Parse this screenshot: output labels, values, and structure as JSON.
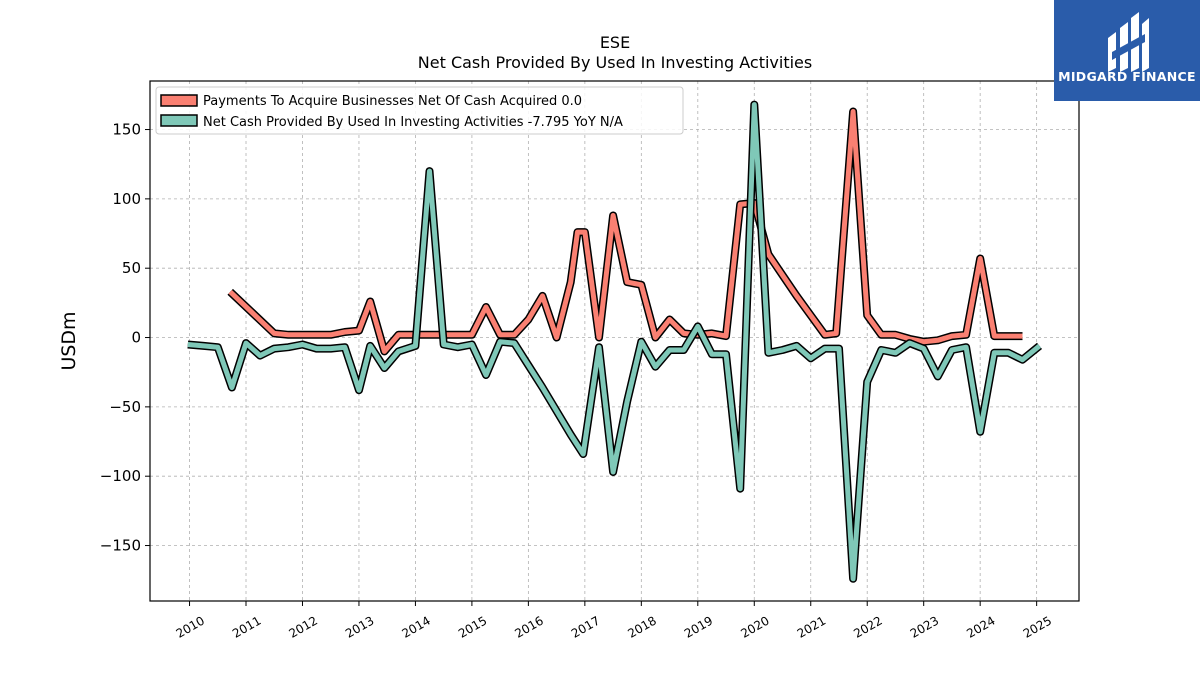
{
  "chart_data": {
    "type": "line",
    "title": "ESE",
    "subtitle": "Net Cash Provided By Used In Investing Activities",
    "ylabel": "USDm",
    "xlabel": "",
    "ylim": [
      -190,
      185
    ],
    "xlim": [
      2009.3,
      2025.75
    ],
    "yticks": [
      -150,
      -100,
      -50,
      0,
      50,
      100,
      150
    ],
    "ytick_labels": [
      "−150",
      "−100",
      "−50",
      "0",
      "50",
      "100",
      "150"
    ],
    "xticks": [
      2010,
      2011,
      2012,
      2013,
      2014,
      2015,
      2016,
      2017,
      2018,
      2019,
      2020,
      2021,
      2022,
      2023,
      2024,
      2025
    ],
    "xtick_labels": [
      "2010",
      "2011",
      "2012",
      "2013",
      "2014",
      "2015",
      "2016",
      "2017",
      "2018",
      "2019",
      "2020",
      "2021",
      "2022",
      "2023",
      "2024",
      "2025"
    ],
    "grid": true,
    "legend_position": "top-left",
    "series": [
      {
        "name": "Payments To Acquire Businesses Net Of Cash Acquired",
        "legend_label": "Payments To Acquire Businesses Net Of Cash Acquired  0.0",
        "color": "#fa8072",
        "x": [
          2010.72,
          2011.5,
          2011.75,
          2012.0,
          2012.25,
          2012.5,
          2012.75,
          2013.0,
          2013.2,
          2013.45,
          2013.7,
          2014.0,
          2014.25,
          2014.5,
          2014.75,
          2015.0,
          2015.25,
          2015.5,
          2015.75,
          2016.0,
          2016.25,
          2016.5,
          2016.75,
          2016.87,
          2017.0,
          2017.25,
          2017.5,
          2017.75,
          2018.0,
          2018.25,
          2018.5,
          2018.75,
          2019.0,
          2019.25,
          2019.5,
          2019.75,
          2020.0,
          2020.25,
          2020.5,
          2020.75,
          2021.0,
          2021.25,
          2021.45,
          2021.75,
          2022.0,
          2022.25,
          2022.5,
          2022.75,
          2023.0,
          2023.25,
          2023.5,
          2023.75,
          2024.0,
          2024.25,
          2024.5,
          2024.75
        ],
        "values": [
          33,
          3,
          2,
          2,
          2,
          2,
          4,
          5,
          26,
          -10,
          2,
          2,
          2,
          2,
          2,
          2,
          22,
          2,
          2,
          13,
          30,
          0,
          40,
          76,
          76,
          0,
          88,
          40,
          38,
          0,
          13,
          3,
          2,
          3,
          1,
          96,
          97,
          60,
          45,
          30,
          16,
          2,
          3,
          163,
          16,
          2,
          2,
          -1,
          -3,
          -2,
          1,
          2,
          57,
          1,
          1,
          1
        ]
      },
      {
        "name": "Net Cash Provided By Used In Investing Activities",
        "legend_label": "Net Cash Provided By Used In Investing Activities  -7.795 YoY N/A",
        "color": "#7fc8b8",
        "x": [
          2009.97,
          2010.25,
          2010.5,
          2010.75,
          2011.0,
          2011.25,
          2011.5,
          2011.75,
          2012.0,
          2012.25,
          2012.5,
          2012.75,
          2013.0,
          2013.2,
          2013.45,
          2013.7,
          2014.0,
          2014.25,
          2014.5,
          2014.75,
          2015.0,
          2015.25,
          2015.5,
          2015.75,
          2016.0,
          2016.25,
          2016.5,
          2016.75,
          2016.97,
          2017.25,
          2017.5,
          2017.75,
          2018.0,
          2018.25,
          2018.5,
          2018.75,
          2019.0,
          2019.25,
          2019.5,
          2019.75,
          2020.0,
          2020.25,
          2020.5,
          2020.75,
          2021.0,
          2021.25,
          2021.5,
          2021.75,
          2022.0,
          2022.25,
          2022.5,
          2022.75,
          2023.0,
          2023.25,
          2023.5,
          2023.75,
          2024.0,
          2024.25,
          2024.5,
          2024.75,
          2025.05
        ],
        "values": [
          -5,
          -6,
          -7,
          -36,
          -4,
          -13,
          -8,
          -7,
          -5,
          -8,
          -8,
          -7,
          -38,
          -6,
          -22,
          -10,
          -6,
          120,
          -5,
          -7,
          -5,
          -27,
          -3,
          -4,
          -20,
          -36,
          -53,
          -70,
          -84,
          -7,
          -97,
          -46,
          -3,
          -21,
          -9,
          -9,
          8,
          -12,
          -12,
          -109,
          168,
          -11,
          -9,
          -6,
          -15,
          -8,
          -8,
          -174,
          -32,
          -9,
          -11,
          -4,
          -8,
          -28,
          -9,
          -7,
          -68,
          -11,
          -11,
          -16,
          -6
        ]
      }
    ]
  },
  "logo": {
    "text": "MIDGARD FINANCE",
    "background": "#2a5caa"
  }
}
